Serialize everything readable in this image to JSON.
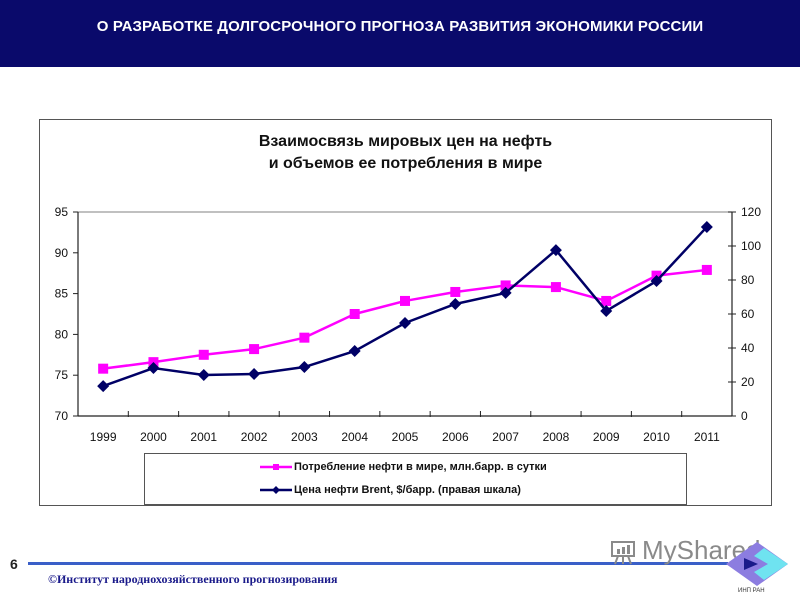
{
  "header": {
    "title": "О РАЗРАБОТКЕ ДОЛГОСРОЧНОГО  ПРОГНОЗА  РАЗВИТИЯ ЭКОНОМИКИ РОССИИ",
    "background": "#0a0a6b"
  },
  "chart": {
    "title_line1": "Взаимосвязь мировых цен на нефть",
    "title_line2": "и объемов ее потребления в мире"
  },
  "legend": {
    "items": [
      {
        "label": "Потребление нефти в мире, млн.барр. в сутки",
        "color": "#ff00ff",
        "marker": "square"
      },
      {
        "label": "Цена нефти Brent,  $/барр. (правая шкала)",
        "color": "#000066",
        "marker": "diamond"
      }
    ]
  },
  "footer": {
    "page_number": "6",
    "copyright": "©Институт народнохозяйственного прогнозирования",
    "watermark": "MyShared",
    "logo_caption": "ИНП РАН"
  },
  "chart_data": {
    "type": "line",
    "title": "Взаимосвязь мировых цен на нефть и объемов ее потребления в мире",
    "categories": [
      "1999",
      "2000",
      "2001",
      "2002",
      "2003",
      "2004",
      "2005",
      "2006",
      "2007",
      "2008",
      "2009",
      "2010",
      "2011"
    ],
    "series": [
      {
        "name": "Потребление нефти в мире, млн.барр. в сутки",
        "axis": "left",
        "color": "#ff00ff",
        "marker": "square",
        "values": [
          75.8,
          76.6,
          77.5,
          78.2,
          79.6,
          82.5,
          84.1,
          85.2,
          86.0,
          85.8,
          84.1,
          87.2,
          87.9
        ]
      },
      {
        "name": "Цена нефти Brent,  $/барр. (правая шкала)",
        "axis": "right",
        "color": "#000066",
        "marker": "diamond",
        "values": [
          17.6,
          28.2,
          24.1,
          24.7,
          28.8,
          38.2,
          54.7,
          65.9,
          72.4,
          97.6,
          61.8,
          79.4,
          111.2
        ]
      }
    ],
    "xlabel": "",
    "ylabel_left": "",
    "ylabel_right": "",
    "ylim_left": [
      70,
      95
    ],
    "yticks_left": [
      70,
      75,
      80,
      85,
      90,
      95
    ],
    "ylim_right": [
      0,
      120
    ],
    "yticks_right": [
      0,
      20,
      40,
      60,
      80,
      100,
      120
    ],
    "grid": false,
    "legend_position": "bottom"
  }
}
